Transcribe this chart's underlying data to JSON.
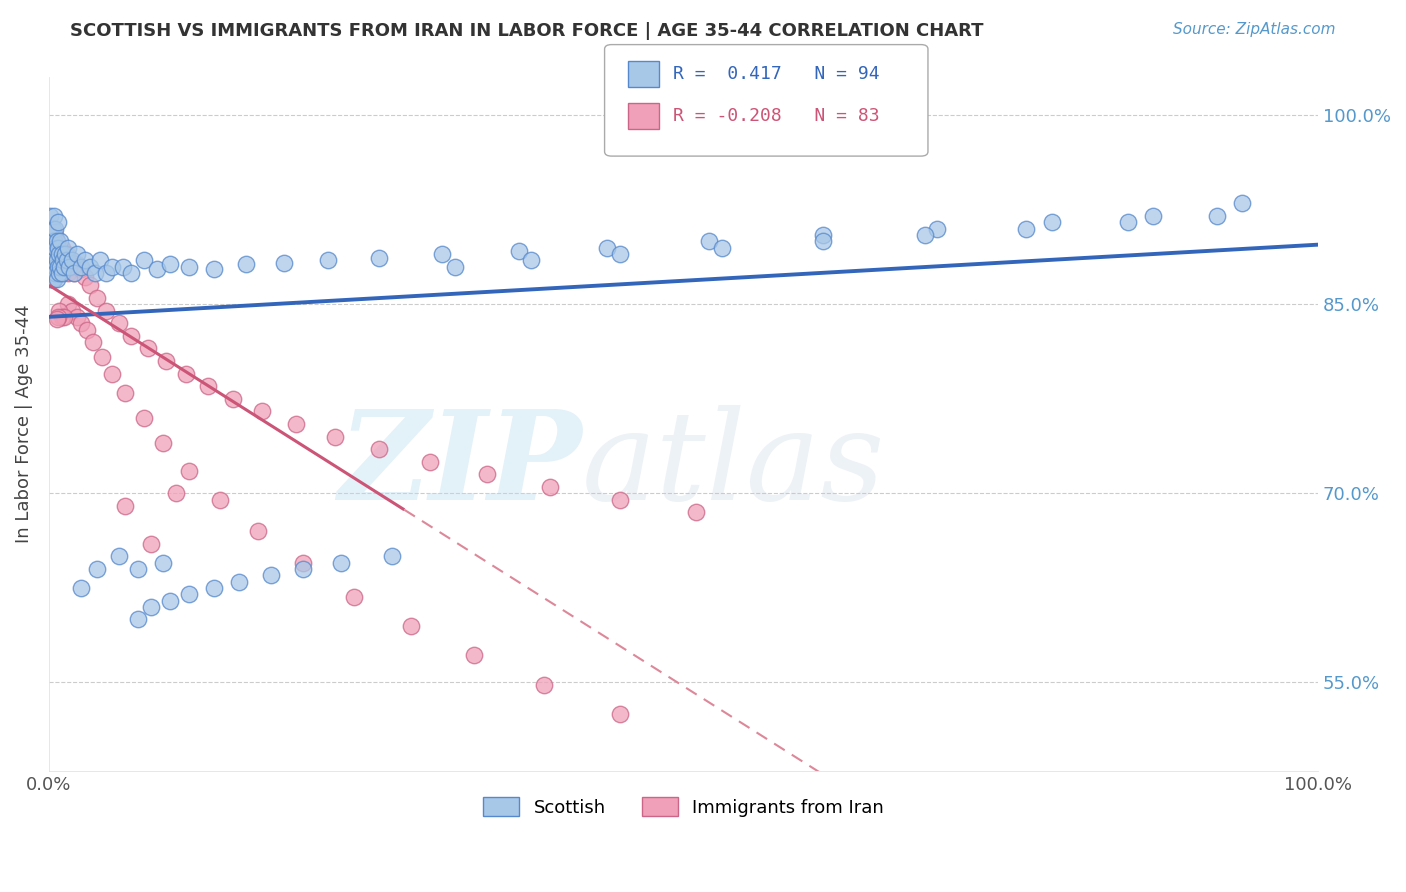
{
  "title": "SCOTTISH VS IMMIGRANTS FROM IRAN IN LABOR FORCE | AGE 35-44 CORRELATION CHART",
  "source": "Source: ZipAtlas.com",
  "ylabel": "In Labor Force | Age 35-44",
  "xlim": [
    0.0,
    1.0
  ],
  "ylim": [
    0.48,
    1.03
  ],
  "ytick_labels": [
    "55.0%",
    "70.0%",
    "85.0%",
    "100.0%"
  ],
  "ytick_values": [
    0.55,
    0.7,
    0.85,
    1.0
  ],
  "watermark_zip": "ZIP",
  "watermark_atlas": "atlas",
  "legend_r_blue": "R =  0.417",
  "legend_n_blue": "N = 94",
  "legend_r_pink": "R = -0.208",
  "legend_n_pink": "N = 83",
  "blue_scatter_color": "#A8C8E8",
  "blue_edge_color": "#5588CC",
  "pink_scatter_color": "#F0A0B8",
  "pink_edge_color": "#CC6688",
  "trend_blue_color": "#3366BB",
  "trend_pink_solid_color": "#CC5577",
  "trend_pink_dash_color": "#DD8899",
  "background_color": "#FFFFFF",
  "grid_color": "#CCCCCC",
  "scottish_x": [
    0.001,
    0.001,
    0.001,
    0.001,
    0.002,
    0.002,
    0.002,
    0.002,
    0.002,
    0.003,
    0.003,
    0.003,
    0.003,
    0.003,
    0.004,
    0.004,
    0.004,
    0.004,
    0.005,
    0.005,
    0.005,
    0.005,
    0.006,
    0.006,
    0.006,
    0.007,
    0.007,
    0.007,
    0.008,
    0.008,
    0.009,
    0.009,
    0.01,
    0.01,
    0.011,
    0.012,
    0.013,
    0.014,
    0.015,
    0.016,
    0.018,
    0.02,
    0.022,
    0.025,
    0.028,
    0.032,
    0.036,
    0.04,
    0.045,
    0.05,
    0.058,
    0.065,
    0.075,
    0.085,
    0.095,
    0.11,
    0.13,
    0.155,
    0.185,
    0.22,
    0.26,
    0.31,
    0.37,
    0.44,
    0.52,
    0.61,
    0.7,
    0.79,
    0.87,
    0.94,
    0.07,
    0.08,
    0.095,
    0.11,
    0.13,
    0.15,
    0.175,
    0.2,
    0.23,
    0.27,
    0.32,
    0.38,
    0.45,
    0.53,
    0.61,
    0.69,
    0.77,
    0.85,
    0.92,
    0.025,
    0.038,
    0.055,
    0.07,
    0.09
  ],
  "scottish_y": [
    0.9,
    0.88,
    0.87,
    0.92,
    0.9,
    0.885,
    0.87,
    0.91,
    0.895,
    0.88,
    0.9,
    0.87,
    0.89,
    0.91,
    0.885,
    0.87,
    0.9,
    0.92,
    0.88,
    0.895,
    0.875,
    0.91,
    0.885,
    0.87,
    0.9,
    0.88,
    0.895,
    0.915,
    0.875,
    0.89,
    0.88,
    0.9,
    0.875,
    0.89,
    0.885,
    0.88,
    0.89,
    0.885,
    0.895,
    0.88,
    0.885,
    0.875,
    0.89,
    0.88,
    0.885,
    0.88,
    0.875,
    0.885,
    0.875,
    0.88,
    0.88,
    0.875,
    0.885,
    0.878,
    0.882,
    0.88,
    0.878,
    0.882,
    0.883,
    0.885,
    0.887,
    0.89,
    0.892,
    0.895,
    0.9,
    0.905,
    0.91,
    0.915,
    0.92,
    0.93,
    0.6,
    0.61,
    0.615,
    0.62,
    0.625,
    0.63,
    0.635,
    0.64,
    0.645,
    0.65,
    0.88,
    0.885,
    0.89,
    0.895,
    0.9,
    0.905,
    0.91,
    0.915,
    0.92,
    0.625,
    0.64,
    0.65,
    0.64,
    0.645
  ],
  "iran_x": [
    0.001,
    0.001,
    0.001,
    0.002,
    0.002,
    0.002,
    0.003,
    0.003,
    0.003,
    0.004,
    0.004,
    0.004,
    0.005,
    0.005,
    0.005,
    0.006,
    0.006,
    0.007,
    0.007,
    0.008,
    0.008,
    0.009,
    0.009,
    0.01,
    0.01,
    0.011,
    0.012,
    0.013,
    0.014,
    0.015,
    0.016,
    0.018,
    0.02,
    0.022,
    0.025,
    0.028,
    0.032,
    0.038,
    0.045,
    0.055,
    0.065,
    0.078,
    0.092,
    0.108,
    0.125,
    0.145,
    0.168,
    0.195,
    0.225,
    0.26,
    0.3,
    0.345,
    0.395,
    0.45,
    0.51,
    0.015,
    0.018,
    0.022,
    0.008,
    0.01,
    0.025,
    0.03,
    0.012,
    0.007,
    0.006,
    0.035,
    0.042,
    0.05,
    0.06,
    0.075,
    0.09,
    0.11,
    0.135,
    0.165,
    0.2,
    0.24,
    0.285,
    0.335,
    0.39,
    0.45,
    0.06,
    0.08,
    0.1
  ],
  "iran_y": [
    0.9,
    0.885,
    0.91,
    0.895,
    0.875,
    0.91,
    0.89,
    0.87,
    0.905,
    0.88,
    0.895,
    0.87,
    0.89,
    0.875,
    0.905,
    0.88,
    0.895,
    0.875,
    0.89,
    0.88,
    0.895,
    0.875,
    0.89,
    0.88,
    0.895,
    0.875,
    0.885,
    0.88,
    0.89,
    0.875,
    0.885,
    0.88,
    0.875,
    0.882,
    0.878,
    0.872,
    0.865,
    0.855,
    0.845,
    0.835,
    0.825,
    0.815,
    0.805,
    0.795,
    0.785,
    0.775,
    0.765,
    0.755,
    0.745,
    0.735,
    0.725,
    0.715,
    0.705,
    0.695,
    0.685,
    0.85,
    0.845,
    0.84,
    0.845,
    0.84,
    0.835,
    0.83,
    0.84,
    0.84,
    0.838,
    0.82,
    0.808,
    0.795,
    0.78,
    0.76,
    0.74,
    0.718,
    0.695,
    0.67,
    0.645,
    0.618,
    0.595,
    0.572,
    0.548,
    0.525,
    0.69,
    0.66,
    0.7
  ]
}
